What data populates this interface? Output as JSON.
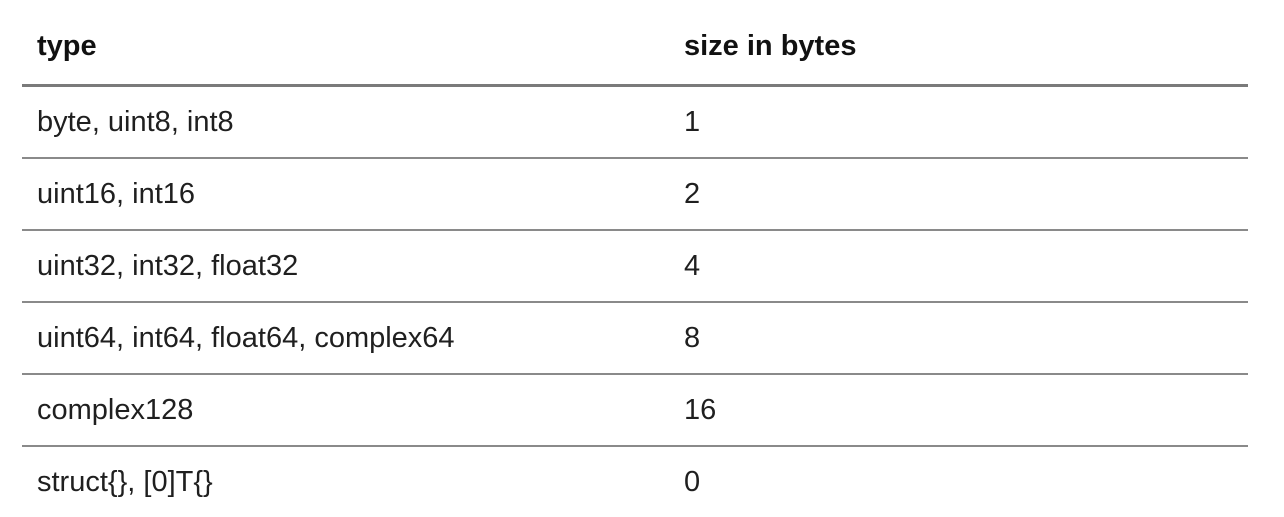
{
  "table": {
    "headers": {
      "type": "type",
      "size": "size in bytes"
    },
    "rows": [
      {
        "type": "byte, uint8, int8",
        "size": "1"
      },
      {
        "type": "uint16, int16",
        "size": "2"
      },
      {
        "type": "uint32, int32, float32",
        "size": "4"
      },
      {
        "type": "uint64, int64, float64, complex64",
        "size": "8"
      },
      {
        "type": "complex128",
        "size": "16"
      },
      {
        "type": "struct{}, [0]T{}",
        "size": "0"
      }
    ]
  }
}
